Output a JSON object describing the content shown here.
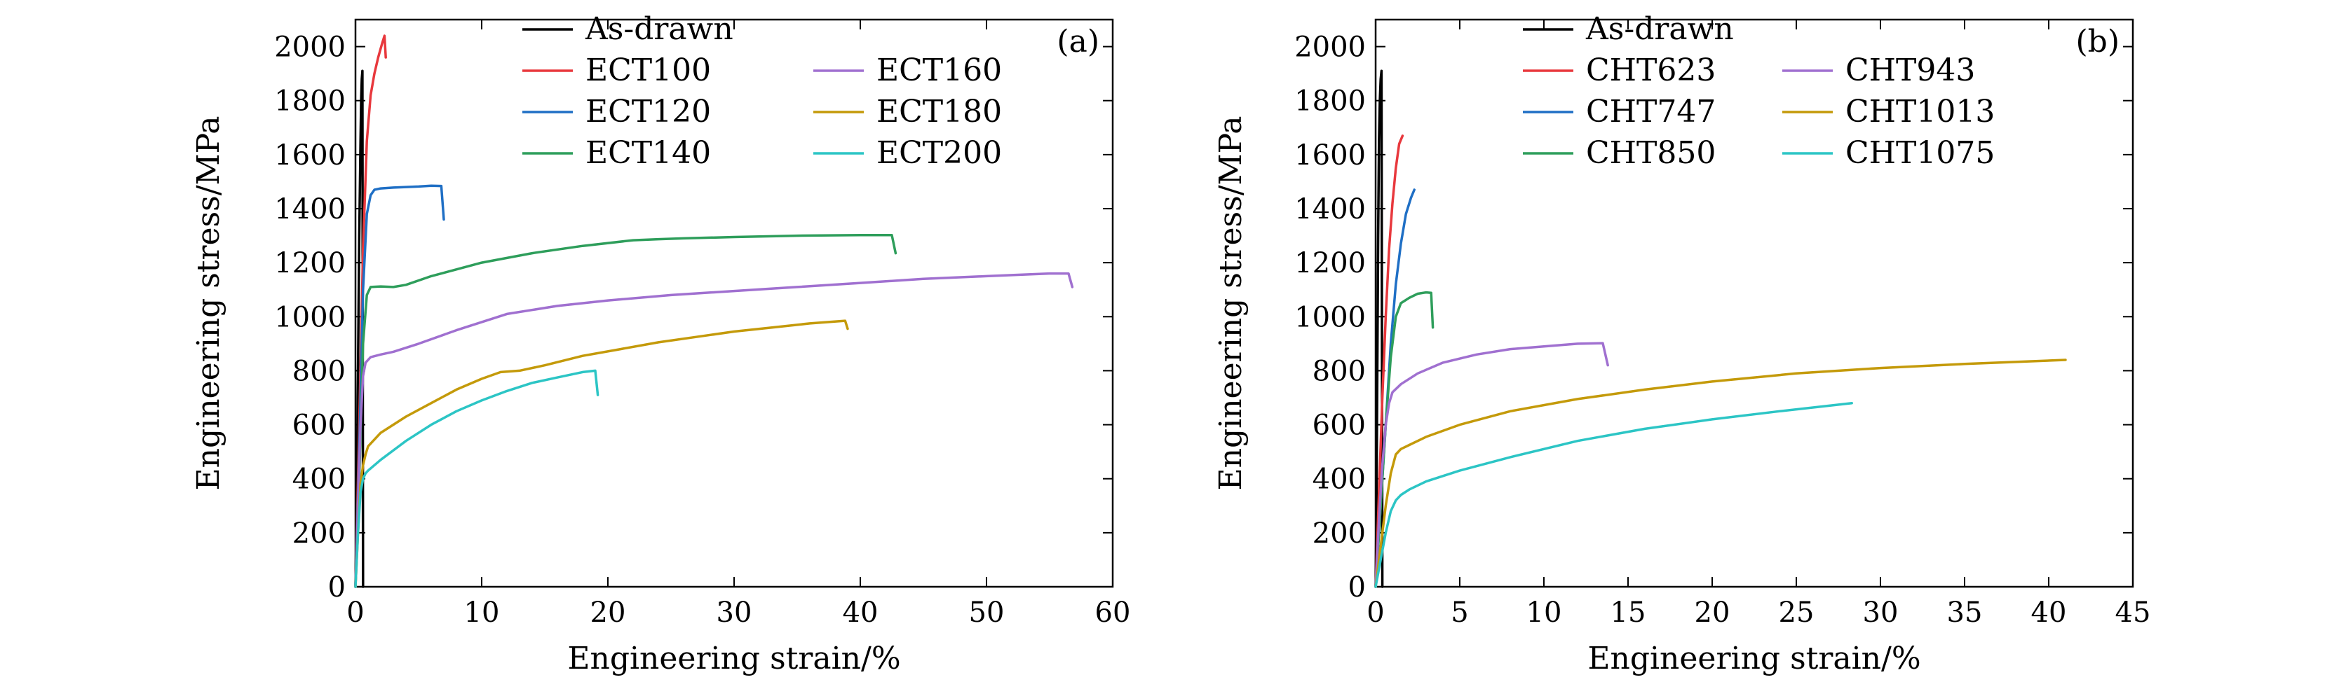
{
  "chart_data": [
    {
      "type": "line",
      "panel_label": "(a)",
      "xlabel": "Engineering strain/%",
      "ylabel": "Engineering stress/MPa",
      "xlim": [
        0,
        60
      ],
      "ylim": [
        0,
        2100
      ],
      "xticks": [
        0,
        10,
        20,
        30,
        40,
        50,
        60
      ],
      "yticks": [
        0,
        200,
        400,
        600,
        800,
        1000,
        1200,
        1400,
        1600,
        1800,
        2000
      ],
      "grid": false,
      "legend_position": "top-right, two columns",
      "series": [
        {
          "name": "As-drawn",
          "color": "#000000",
          "x": [
            0.0,
            0.1,
            0.2,
            0.3,
            0.4,
            0.45,
            0.5,
            0.55,
            0.6
          ],
          "y": [
            0,
            300,
            800,
            1300,
            1650,
            1800,
            1880,
            1910,
            0
          ]
        },
        {
          "name": "ECT100",
          "color": "#e8383d",
          "x": [
            0.0,
            0.3,
            0.6,
            0.9,
            1.2,
            1.5,
            1.8,
            2.1,
            2.3,
            2.4
          ],
          "y": [
            0,
            600,
            1250,
            1650,
            1820,
            1900,
            1960,
            2010,
            2040,
            1960
          ]
        },
        {
          "name": "ECT120",
          "color": "#1f6fc5",
          "x": [
            0.0,
            0.3,
            0.6,
            0.9,
            1.2,
            1.5,
            2.0,
            3.0,
            4.0,
            5.0,
            6.0,
            6.8,
            7.0
          ],
          "y": [
            0,
            500,
            1100,
            1380,
            1450,
            1470,
            1475,
            1478,
            1480,
            1482,
            1485,
            1484,
            1360
          ]
        },
        {
          "name": "ECT140",
          "color": "#2e9e5b",
          "x": [
            0.0,
            0.3,
            0.6,
            0.9,
            1.2,
            2.0,
            3.0,
            4.0,
            6.0,
            10.0,
            14.0,
            18.0,
            22.0,
            24.0,
            26.0,
            30.0,
            35.0,
            40.0,
            42.5,
            42.8
          ],
          "y": [
            0,
            400,
            900,
            1080,
            1110,
            1112,
            1110,
            1118,
            1150,
            1200,
            1235,
            1262,
            1283,
            1287,
            1290,
            1295,
            1300,
            1302,
            1302,
            1235
          ]
        },
        {
          "name": "ECT160",
          "color": "#a070d0",
          "x": [
            0.0,
            0.2,
            0.4,
            0.6,
            0.8,
            1.2,
            2.0,
            3.0,
            5.0,
            8.0,
            12.0,
            16.0,
            20.0,
            25.0,
            30.0,
            35.0,
            40.0,
            45.0,
            50.0,
            55.0,
            56.5,
            56.8
          ],
          "y": [
            0,
            300,
            600,
            780,
            830,
            850,
            860,
            870,
            900,
            950,
            1010,
            1040,
            1060,
            1080,
            1095,
            1110,
            1125,
            1140,
            1150,
            1160,
            1160,
            1110
          ]
        },
        {
          "name": "ECT180",
          "color": "#c49a0a",
          "x": [
            0.0,
            0.2,
            0.4,
            0.6,
            0.8,
            1.0,
            2.0,
            4.0,
            6.0,
            8.0,
            10.0,
            11.5,
            13.0,
            15.0,
            18.0,
            21.0,
            24.0,
            27.0,
            30.0,
            33.0,
            36.0,
            38.8,
            39.0
          ],
          "y": [
            0,
            200,
            380,
            450,
            490,
            520,
            570,
            630,
            680,
            730,
            770,
            795,
            800,
            820,
            855,
            880,
            905,
            925,
            945,
            960,
            975,
            985,
            955
          ]
        },
        {
          "name": "ECT200",
          "color": "#2cc5c5",
          "x": [
            0.0,
            0.2,
            0.4,
            0.6,
            0.8,
            1.0,
            2.0,
            4.0,
            6.0,
            8.0,
            10.0,
            12.0,
            14.0,
            16.0,
            18.0,
            19.0,
            19.2
          ],
          "y": [
            0,
            200,
            350,
            400,
            420,
            430,
            470,
            540,
            600,
            650,
            690,
            725,
            755,
            775,
            795,
            800,
            710
          ]
        }
      ]
    },
    {
      "type": "line",
      "panel_label": "(b)",
      "xlabel": "Engineering strain/%",
      "ylabel": "Engineering stress/MPa",
      "xlim": [
        0,
        45
      ],
      "ylim": [
        0,
        2100
      ],
      "xticks": [
        0,
        5,
        10,
        15,
        20,
        25,
        30,
        35,
        40,
        45
      ],
      "yticks": [
        0,
        200,
        400,
        600,
        800,
        1000,
        1200,
        1400,
        1600,
        1800,
        2000
      ],
      "grid": false,
      "legend_position": "top-right, two columns",
      "series": [
        {
          "name": "As-drawn",
          "color": "#000000",
          "x": [
            0.0,
            0.05,
            0.1,
            0.15,
            0.2,
            0.25,
            0.3,
            0.35,
            0.4
          ],
          "y": [
            0,
            300,
            800,
            1300,
            1650,
            1800,
            1880,
            1910,
            0
          ]
        },
        {
          "name": "CHT623",
          "color": "#e8383d",
          "x": [
            0.0,
            0.2,
            0.4,
            0.6,
            0.8,
            1.0,
            1.2,
            1.4,
            1.6
          ],
          "y": [
            0,
            350,
            700,
            1000,
            1250,
            1420,
            1550,
            1640,
            1670
          ]
        },
        {
          "name": "CHT747",
          "color": "#1f6fc5",
          "x": [
            0.0,
            0.3,
            0.6,
            0.9,
            1.2,
            1.5,
            1.8,
            2.1,
            2.3
          ],
          "y": [
            0,
            300,
            600,
            900,
            1120,
            1270,
            1380,
            1440,
            1470
          ]
        },
        {
          "name": "CHT850",
          "color": "#2e9e5b",
          "x": [
            0.0,
            0.3,
            0.6,
            0.9,
            1.2,
            1.5,
            2.0,
            2.5,
            3.0,
            3.3,
            3.4
          ],
          "y": [
            0,
            300,
            600,
            850,
            1000,
            1050,
            1070,
            1085,
            1090,
            1088,
            960
          ]
        },
        {
          "name": "CHT943",
          "color": "#a070d0",
          "x": [
            0.0,
            0.2,
            0.4,
            0.6,
            0.8,
            1.0,
            1.5,
            2.5,
            4.0,
            6.0,
            8.0,
            10.0,
            12.0,
            13.5,
            13.8
          ],
          "y": [
            0,
            250,
            450,
            600,
            680,
            720,
            750,
            790,
            830,
            860,
            880,
            890,
            900,
            902,
            820
          ]
        },
        {
          "name": "CHT1013",
          "color": "#c49a0a",
          "x": [
            0.0,
            0.3,
            0.6,
            0.9,
            1.2,
            1.5,
            2.0,
            3.0,
            5.0,
            8.0,
            12.0,
            16.0,
            20.0,
            25.0,
            30.0,
            35.0,
            41.0
          ],
          "y": [
            0,
            150,
            300,
            420,
            490,
            510,
            525,
            555,
            600,
            650,
            695,
            730,
            760,
            790,
            810,
            825,
            840
          ]
        },
        {
          "name": "CHT1075",
          "color": "#2cc5c5",
          "x": [
            0.0,
            0.3,
            0.6,
            0.9,
            1.2,
            1.5,
            2.0,
            3.0,
            5.0,
            8.0,
            12.0,
            16.0,
            20.0,
            24.0,
            28.3
          ],
          "y": [
            0,
            100,
            200,
            280,
            320,
            340,
            360,
            390,
            430,
            480,
            540,
            585,
            620,
            650,
            680
          ]
        }
      ]
    }
  ]
}
